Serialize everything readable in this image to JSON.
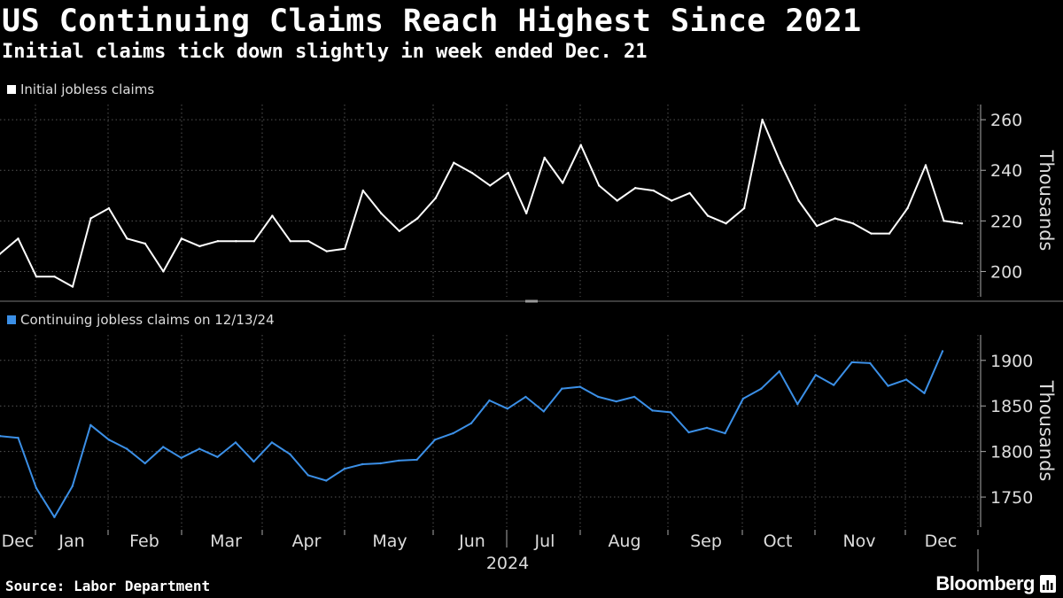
{
  "header": {
    "title": "US Continuing Claims Reach Highest Since 2021",
    "subtitle": "Initial claims tick down slightly in week ended Dec. 21"
  },
  "footer": {
    "source": "Source: Labor Department",
    "brand": "Bloomberg"
  },
  "colors": {
    "initial": "#ffffff",
    "continuing": "#3b8fe6",
    "background": "#000000",
    "grid": "#555555"
  },
  "chart_data": [
    {
      "type": "line",
      "legend": "Initial jobless claims",
      "ylabel": "Thousands",
      "ylim": [
        190,
        266
      ],
      "yticks": [
        "200",
        "220",
        "240",
        "260"
      ],
      "series": [
        {
          "name": "Initial jobless claims",
          "values": [
            207,
            213,
            198,
            198,
            194,
            221,
            225,
            213,
            211,
            200,
            213,
            210,
            212,
            212,
            212,
            222,
            212,
            212,
            208,
            209,
            232,
            223,
            216,
            221,
            229,
            243,
            239,
            234,
            239,
            223,
            245,
            235,
            250,
            234,
            228,
            233,
            232,
            228,
            231,
            222,
            219,
            225,
            260,
            243,
            228,
            218,
            221,
            219,
            215,
            215,
            225,
            242,
            220,
            219
          ]
        }
      ]
    },
    {
      "type": "line",
      "legend": "Continuing jobless claims on 12/13/24",
      "ylabel": "Thousands",
      "ylim": [
        1717,
        1928
      ],
      "yticks": [
        "1750",
        "1800",
        "1850",
        "1900"
      ],
      "series": [
        {
          "name": "Continuing jobless claims on 12/13/24",
          "values": [
            1817,
            1815,
            1760,
            1728,
            1762,
            1829,
            1813,
            1803,
            1787,
            1805,
            1793,
            1803,
            1794,
            1810,
            1789,
            1810,
            1797,
            1774,
            1768,
            1781,
            1786,
            1787,
            1790,
            1791,
            1813,
            1820,
            1831,
            1856,
            1847,
            1860,
            1844,
            1869,
            1871,
            1860,
            1855,
            1860,
            1845,
            1843,
            1821,
            1826,
            1820,
            1858,
            1869,
            1888,
            1852,
            1884,
            1873,
            1898,
            1897,
            1872,
            1879,
            1864,
            1910
          ]
        }
      ]
    }
  ],
  "x_axis": {
    "months": [
      "Dec",
      "Jan",
      "Feb",
      "Mar",
      "Apr",
      "May",
      "Jun",
      "Jul",
      "Aug",
      "Sep",
      "Oct",
      "Nov",
      "Dec"
    ],
    "year_label": "2024"
  }
}
